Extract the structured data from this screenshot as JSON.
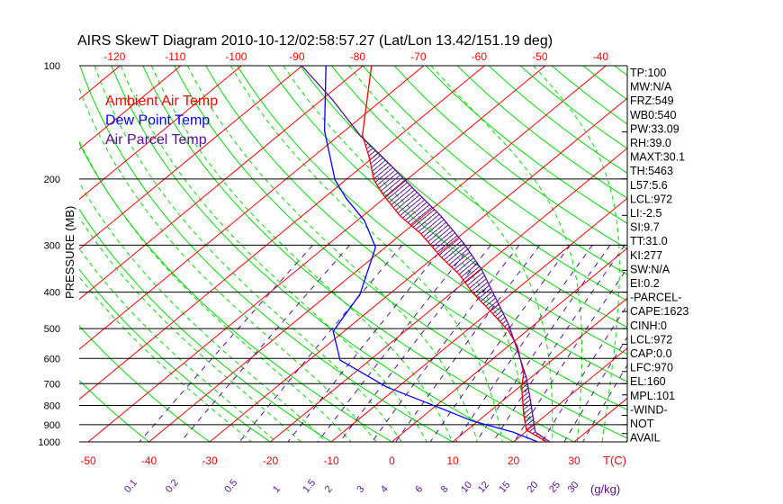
{
  "chart_data": {
    "type": "line",
    "title": "AIRS SkewT Diagram 2010-10-12/02:58:57.27 (Lat/Lon 13.42/151.19 deg)",
    "ylabel": "PRESSURE (MB)",
    "xlabel": "T(C)",
    "mixing_ratio_label": "(g/kg)",
    "ylim": [
      1000,
      100
    ],
    "pressure_ticks": [
      100,
      200,
      300,
      400,
      500,
      600,
      700,
      800,
      900,
      1000
    ],
    "top_temp_ticks": [
      -120,
      -110,
      -100,
      -90,
      -80,
      -70,
      -60,
      -50,
      -40
    ],
    "bottom_temp_ticks": [
      -50,
      -40,
      -30,
      -20,
      -10,
      0,
      10,
      20,
      30
    ],
    "mixing_ratio_ticks": [
      "0.1",
      "0.2",
      "0.5",
      "1",
      "1.5",
      "2",
      "3",
      "4",
      "6",
      "8",
      "10",
      "12",
      "15",
      "20",
      "25",
      "30"
    ],
    "legend": [
      {
        "label": "Ambient Air Temp",
        "color": "#ff0000"
      },
      {
        "label": "Dew Point Temp",
        "color": "#0000ff"
      },
      {
        "label": "Air Parcel Temp",
        "color": "#5a0f9a"
      }
    ],
    "series": [
      {
        "name": "Ambient Air Temp",
        "color": "#ff0000",
        "p": [
          100,
          153,
          175,
          201,
          219,
          251,
          280,
          322,
          359,
          401,
          448,
          508,
          558,
          658,
          715,
          843,
          931,
          1000
        ],
        "t": [
          -78.6,
          -66.2,
          -60.7,
          -55.4,
          -51.2,
          -43.8,
          -36.8,
          -29.0,
          -22.4,
          -16.6,
          -10.1,
          -2.9,
          1.6,
          8.0,
          10.4,
          16.1,
          19.8,
          25.5
        ]
      },
      {
        "name": "Dew Point Temp",
        "color": "#0000ff",
        "p": [
          100,
          149,
          201,
          225,
          258,
          304,
          405,
          508,
          606,
          715,
          797,
          880,
          941,
          1000
        ],
        "t": [
          -86.1,
          -73.3,
          -61.8,
          -56.3,
          -48.8,
          -41.6,
          -34.8,
          -31.8,
          -24.9,
          -11.8,
          -0.8,
          9.1,
          17.9,
          24.0
        ]
      },
      {
        "name": "Air Parcel Temp",
        "color": "#5a0f9a",
        "p": [
          100,
          123,
          153,
          180,
          213,
          251,
          296,
          349,
          412,
          486,
          573,
          677,
          797,
          941,
          1000
        ],
        "t": [
          -90.1,
          -78.3,
          -66.6,
          -56.8,
          -46.9,
          -37.1,
          -28.0,
          -19.6,
          -12.0,
          -4.4,
          2.5,
          9.4,
          15.5,
          21.6,
          26.0
        ]
      }
    ],
    "colors": {
      "isotherm": "#ff0000",
      "dry_adiabat": "#00dd00",
      "moist_adiabat": "#00dd00",
      "mixing_ratio": "#5a0f9a",
      "hatch": "#5a0f9a"
    },
    "indices": [
      "TP:100",
      "MW:N/A",
      "FRZ:549",
      "WB0:540",
      "PW:33.09",
      "RH:39.0",
      "MAXT:30.1",
      "TH:5463",
      "L57:5.6",
      "LCL:972",
      "LI:-2.5",
      "SI:9.7",
      "TT:31.0",
      "KI:277",
      "SW:N/A",
      "EI:0.2",
      "-PARCEL-",
      "CAPE:1623",
      "CINH:0",
      "LCL:972",
      "CAP:0.0",
      "LFC:970",
      "EL:160",
      "MPL:101",
      "-WIND-",
      "NOT",
      "AVAIL"
    ]
  }
}
